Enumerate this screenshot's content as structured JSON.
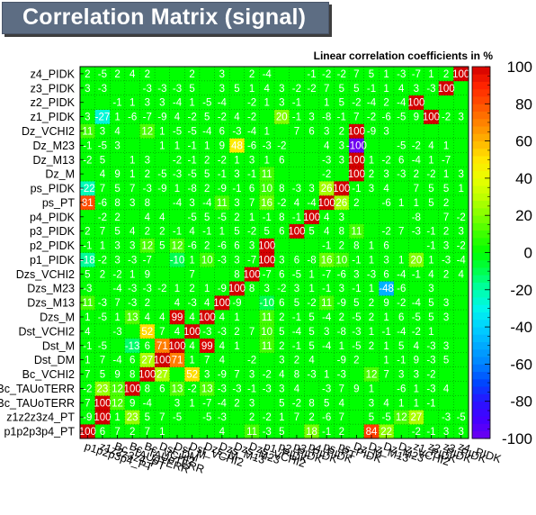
{
  "title": "Correlation Matrix (signal)",
  "chart_data": {
    "type": "heatmap",
    "subtitle": "Linear correlation coefficients in %",
    "variables": [
      "p1p2p3p4_PT",
      "z1z2z3z4_PT",
      "Bc_TAUoTERR",
      "Bc_TAUoTERR",
      "Bc_VCHI2",
      "Dst_DM",
      "Dst_M",
      "Dst_VCHI2",
      "Dzs_M",
      "Dzs_M13",
      "Dzs_M23",
      "Dzs_VCHI2",
      "p1_PIDK",
      "p2_PIDK",
      "p3_PIDK",
      "p4_PIDK",
      "ps_PT",
      "ps_PIDK",
      "Dz_M",
      "Dz_M13",
      "Dz_M23",
      "Dz_VCHI2",
      "z1_PIDK",
      "z2_PIDK",
      "z3_PIDK",
      "z4_PIDK"
    ],
    "y_labels": [
      "p1p2p3p4_PT",
      "z1z2z3z4_PT",
      "Bc_TAUoTERR",
      "Bc_TAUoTERR",
      "Bc_VCHI2",
      "Dst_DM",
      "Dst_M",
      "Dst_VCHI2",
      "Dzs_M",
      "Dzs_M13",
      "Dzs_M23",
      "Dzs_VCHI2",
      "p1_PIDK",
      "p2_PIDK",
      "p3_PIDK",
      "p4_PIDK",
      "ps_PT",
      "ps_PIDK",
      "Dz_M",
      "Dz_M13",
      "Dz_M23",
      "Dz_VCHI2",
      "z1_PIDK",
      "z2_PIDK",
      "z3_PIDK",
      "z4_PIDK"
    ],
    "x_labels": [
      "p1p2p3p4_PT",
      "z1z2z3z4_PT",
      "Bc_TAUoTERR",
      "Bc_TAUoTERR",
      "Bc_VCHI2",
      "Dst_DM",
      "Dst_M",
      "Dst_VCHI2",
      "Dzs_M",
      "Dzs_M13",
      "Dzs_M23",
      "Dzs_VCHI2",
      "p1_PIDK",
      "p2_PIDK",
      "p3_PIDK",
      "p4_PIDK",
      "ps_PT",
      "ps_PIDK",
      "Dz_M",
      "Dz_M13",
      "Dz_M23",
      "Dz_VCHI2",
      "z1_PIDK",
      "z2_PIDK",
      "z3_PIDK",
      "z4_PIDK"
    ],
    "zlim": [
      -100,
      100
    ],
    "colorbar_ticks": [
      100,
      80,
      60,
      40,
      20,
      0,
      -20,
      -40,
      -60,
      -80,
      -100
    ],
    "grid": true,
    "values": [
      [
        100,
        6,
        7,
        2,
        7,
        1,
        0,
        0,
        0,
        4,
        0,
        11,
        -3,
        5,
        0,
        18,
        -1,
        2,
        0,
        84,
        22,
        0,
        -2,
        -1,
        3,
        3
      ],
      [
        -9,
        100,
        1,
        23,
        5,
        7,
        -5,
        0,
        -5,
        -3,
        0,
        2,
        -2,
        1,
        7,
        2,
        -6,
        7,
        0,
        5,
        -5,
        12,
        27,
        0,
        -3,
        -5
      ],
      [
        7,
        100,
        12,
        9,
        -4,
        0,
        3,
        1,
        -7,
        -4,
        2,
        3,
        0,
        5,
        -2,
        8,
        5,
        4,
        0,
        3,
        4,
        1,
        1,
        -1,
        0,
        0
      ],
      [
        -2,
        23,
        12,
        100,
        8,
        6,
        13,
        -2,
        13,
        -3,
        -3,
        -1,
        -3,
        3,
        4,
        0,
        -3,
        7,
        9,
        1,
        0,
        -6,
        1,
        -3,
        4,
        0
      ],
      [
        7,
        5,
        9,
        8,
        100,
        27,
        0,
        52,
        3,
        -9,
        7,
        3,
        -2,
        4,
        8,
        -3,
        1,
        -3,
        0,
        12,
        7,
        3,
        3,
        -2,
        0,
        0
      ],
      [
        1,
        7,
        -4,
        6,
        27,
        100,
        71,
        1,
        7,
        4,
        0,
        -2,
        0,
        3,
        2,
        4,
        0,
        -9,
        2,
        0,
        1,
        -1,
        9,
        -3,
        5,
        0
      ],
      [
        -1,
        -5,
        0,
        -13,
        6,
        71,
        100,
        4,
        99,
        4,
        1,
        0,
        11,
        2,
        -1,
        5,
        -4,
        1,
        -5,
        2,
        1,
        5,
        4,
        -3,
        3,
        0
      ],
      [
        4,
        0,
        -3,
        0,
        52,
        7,
        4,
        100,
        -3,
        -3,
        2,
        7,
        10,
        5,
        -4,
        5,
        3,
        -8,
        -3,
        1,
        -1,
        -4,
        -2,
        1,
        0,
        0
      ],
      [
        1,
        -5,
        1,
        13,
        4,
        4,
        99,
        4,
        100,
        4,
        1,
        0,
        11,
        2,
        -1,
        5,
        -4,
        2,
        -5,
        2,
        1,
        6,
        -5,
        5,
        3,
        0
      ],
      [
        11,
        -3,
        7,
        -3,
        2,
        0,
        4,
        -3,
        4,
        100,
        -9,
        0,
        -10,
        6,
        5,
        -2,
        11,
        -9,
        5,
        2,
        9,
        -2,
        -4,
        5,
        3,
        0
      ],
      [
        -3,
        0,
        -4,
        -3,
        -3,
        -2,
        1,
        2,
        1,
        -9,
        100,
        8,
        3,
        -2,
        3,
        1,
        -1,
        3,
        -1,
        1,
        -48,
        -6,
        0,
        3,
        0,
        0
      ],
      [
        5,
        2,
        -2,
        1,
        9,
        0,
        0,
        7,
        0,
        0,
        8,
        100,
        -7,
        6,
        -5,
        1,
        -7,
        -6,
        3,
        -3,
        6,
        -4,
        -1,
        4,
        2,
        4
      ],
      [
        -18,
        -2,
        3,
        -3,
        -7,
        0,
        -10,
        1,
        10,
        -3,
        3,
        -7,
        100,
        3,
        6,
        -8,
        16,
        10,
        -1,
        1,
        3,
        1,
        20,
        1,
        -3,
        -4
      ],
      [
        -1,
        1,
        3,
        3,
        12,
        5,
        12,
        -6,
        2,
        -6,
        6,
        3,
        100,
        0,
        0,
        0,
        -1,
        2,
        8,
        1,
        6,
        0,
        0,
        -1,
        3,
        -2
      ],
      [
        2,
        7,
        5,
        4,
        2,
        2,
        -1,
        4,
        -1,
        1,
        5,
        -2,
        5,
        6,
        100,
        5,
        4,
        8,
        11,
        0,
        -2,
        7,
        -3,
        -1,
        2,
        3
      ],
      [
        0,
        -2,
        2,
        0,
        4,
        4,
        0,
        -5,
        5,
        -5,
        2,
        1,
        -1,
        8,
        -1,
        100,
        4,
        3,
        0,
        0,
        0,
        0,
        -8,
        0,
        7,
        -2
      ],
      [
        81,
        -6,
        8,
        3,
        8,
        0,
        -4,
        3,
        -4,
        11,
        3,
        7,
        16,
        -2,
        4,
        -4,
        100,
        26,
        2,
        0,
        -6,
        1,
        1,
        5,
        2,
        0
      ],
      [
        -22,
        7,
        5,
        7,
        -3,
        -9,
        1,
        -8,
        2,
        -9,
        -1,
        6,
        10,
        8,
        -3,
        3,
        26,
        100,
        -1,
        3,
        4,
        0,
        7,
        5,
        5,
        1
      ],
      [
        0,
        4,
        9,
        1,
        2,
        -5,
        -3,
        -5,
        5,
        -1,
        3,
        -1,
        11,
        0,
        0,
        0,
        -2,
        0,
        100,
        2,
        3,
        -3,
        2,
        -2,
        1,
        3
      ],
      [
        -2,
        5,
        0,
        1,
        3,
        0,
        -2,
        -1,
        2,
        -2,
        1,
        3,
        1,
        6,
        0,
        0,
        -3,
        3,
        100,
        1,
        -2,
        6,
        -4,
        1,
        -7,
        0
      ],
      [
        -1,
        -5,
        3,
        0,
        0,
        1,
        1,
        -1,
        1,
        9,
        48,
        -6,
        -3,
        -2,
        0,
        0,
        4,
        3,
        -100,
        0,
        0,
        -5,
        -2,
        4,
        1,
        0
      ],
      [
        11,
        3,
        4,
        0,
        12,
        1,
        -5,
        -5,
        -4,
        6,
        -3,
        -4,
        1,
        0,
        7,
        6,
        3,
        2,
        100,
        -9,
        3,
        0,
        0,
        0,
        0,
        0
      ],
      [
        3,
        -27,
        1,
        -6,
        -7,
        -9,
        4,
        -2,
        5,
        -2,
        4,
        -2,
        0,
        20,
        -1,
        3,
        -8,
        -1,
        7,
        -2,
        -6,
        -5,
        9,
        100,
        -2,
        3
      ],
      [
        0,
        0,
        -1,
        1,
        3,
        3,
        -4,
        1,
        -5,
        -4,
        0,
        -2,
        1,
        3,
        -1,
        0,
        1,
        5,
        -2,
        -4,
        2,
        -4,
        100,
        0,
        0,
        0
      ],
      [
        3,
        -3,
        0,
        0,
        -3,
        -3,
        -3,
        5,
        0,
        3,
        5,
        1,
        4,
        3,
        -2,
        -2,
        7,
        5,
        5,
        -1,
        1,
        4,
        3,
        -3,
        100,
        0
      ],
      [
        2,
        -5,
        2,
        4,
        2,
        0,
        0,
        2,
        0,
        3,
        0,
        2,
        -4,
        0,
        0,
        -1,
        -2,
        -2,
        7,
        5,
        1,
        -3,
        -7,
        1,
        2,
        100
      ]
    ]
  }
}
